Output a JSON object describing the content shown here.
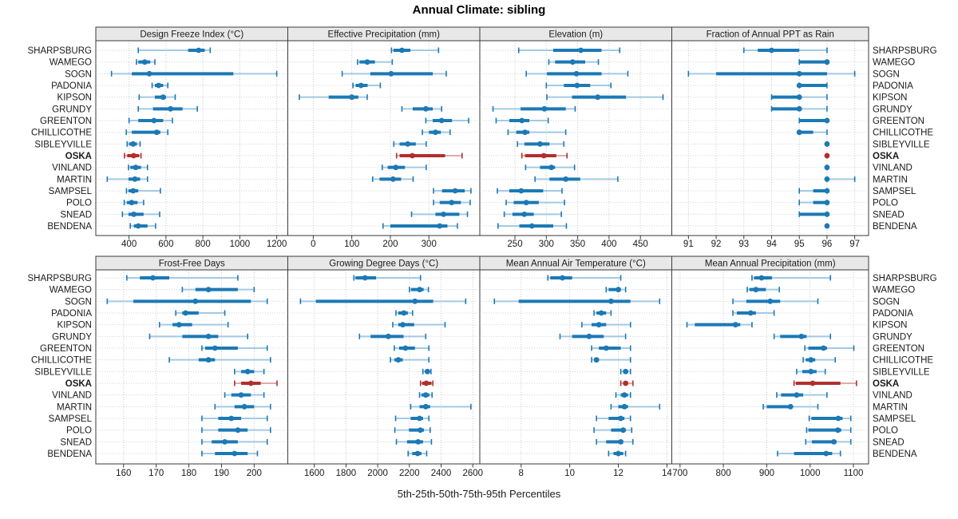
{
  "title": "Annual Climate: sibling",
  "footer": "5th-25th-50th-75th-95th Percentiles",
  "colors": {
    "series": "#1b79b5",
    "series_light": "#a4c9e4",
    "highlight": "#b22e2e",
    "highlight_light": "#ddacac",
    "header_bg": "#e8e8e8",
    "border": "#3a3a3a",
    "grid": "#c8c8c8",
    "text": "#1a1a1a"
  },
  "chart_data": {
    "type": "dotplot-trellis",
    "title": "Annual Climate: sibling",
    "xlabel": "5th-25th-50th-75th-95th Percentiles",
    "legend_note": "each row: thin line 5th-95th percentile with end caps, thick line 25th-75th, dot = median (50th)",
    "grid": "dotted vertical gridlines at ticks, dotted horizontal row guides",
    "highlight_site": "OSKA",
    "sites": [
      "SHARPSBURG",
      "WAMEGO",
      "SOGN",
      "PADONIA",
      "KIPSON",
      "GRUNDY",
      "GREENTON",
      "CHILLICOTHE",
      "SIBLEYVILLE",
      "OSKA",
      "VINLAND",
      "MARTIN",
      "SAMPSEL",
      "POLO",
      "SNEAD",
      "BENDENA"
    ],
    "panels": [
      {
        "title": "Design Freeze Index (°C)",
        "ticks": [
          400,
          600,
          800,
          1000,
          1200
        ],
        "domain": [
          220,
          1260
        ],
        "values": [
          [
            450,
            720,
            777,
            810,
            840
          ],
          [
            440,
            450,
            485,
            515,
            540
          ],
          [
            305,
            415,
            510,
            965,
            1200
          ],
          [
            525,
            540,
            560,
            585,
            610
          ],
          [
            455,
            540,
            585,
            600,
            650
          ],
          [
            450,
            530,
            625,
            690,
            770
          ],
          [
            400,
            450,
            535,
            585,
            635
          ],
          [
            385,
            415,
            550,
            570,
            610
          ],
          [
            390,
            400,
            422,
            443,
            460
          ],
          [
            375,
            390,
            425,
            455,
            465
          ],
          [
            397,
            407,
            436,
            465,
            500
          ],
          [
            282,
            397,
            432,
            460,
            500
          ],
          [
            386,
            397,
            422,
            450,
            570
          ],
          [
            374,
            388,
            414,
            446,
            479
          ],
          [
            364,
            397,
            426,
            479,
            566
          ],
          [
            407,
            426,
            450,
            500,
            544
          ]
        ]
      },
      {
        "title": "Effective Precipitation (mm)",
        "ticks": [
          0,
          100,
          200,
          300
        ],
        "domain": [
          -66,
          432
        ],
        "values": [
          [
            203,
            208,
            230,
            252,
            325
          ],
          [
            115,
            120,
            140,
            160,
            205
          ],
          [
            75,
            148,
            202,
            310,
            345
          ],
          [
            103,
            110,
            124,
            141,
            174
          ],
          [
            -36,
            40,
            100,
            117,
            140
          ],
          [
            230,
            258,
            292,
            310,
            333
          ],
          [
            292,
            310,
            333,
            360,
            403
          ],
          [
            283,
            300,
            317,
            331,
            355
          ],
          [
            209,
            224,
            245,
            266,
            293
          ],
          [
            216,
            224,
            257,
            342,
            386
          ],
          [
            179,
            193,
            214,
            238,
            293
          ],
          [
            154,
            172,
            207,
            228,
            259
          ],
          [
            312,
            334,
            368,
            393,
            409
          ],
          [
            312,
            328,
            359,
            383,
            407
          ],
          [
            255,
            317,
            338,
            379,
            400
          ],
          [
            181,
            200,
            328,
            348,
            374
          ]
        ]
      },
      {
        "title": "Elevation (m)",
        "ticks": [
          250,
          300,
          350,
          400,
          450
        ],
        "domain": [
          194,
          500
        ],
        "values": [
          [
            256,
            311,
            355,
            388,
            417
          ],
          [
            304,
            314,
            342,
            362,
            383
          ],
          [
            268,
            301,
            348,
            388,
            430
          ],
          [
            300,
            328,
            349,
            370,
            403
          ],
          [
            301,
            341,
            382,
            427,
            486
          ],
          [
            215,
            259,
            297,
            331,
            346
          ],
          [
            220,
            241,
            261,
            273,
            303
          ],
          [
            239,
            252,
            266,
            273,
            331
          ],
          [
            254,
            265,
            290,
            305,
            328
          ],
          [
            261,
            266,
            296,
            316,
            333
          ],
          [
            267,
            290,
            308,
            314,
            345
          ],
          [
            282,
            305,
            331,
            354,
            414
          ],
          [
            222,
            241,
            260,
            295,
            325
          ],
          [
            236,
            248,
            268,
            288,
            329
          ],
          [
            233,
            246,
            265,
            280,
            324
          ],
          [
            223,
            257,
            277,
            311,
            332
          ]
        ]
      },
      {
        "title": "Fraction of Annual PPT as Rain",
        "ticks": [
          91,
          92,
          93,
          94,
          95,
          96,
          97
        ],
        "domain": [
          90.4,
          97.5
        ],
        "values": [
          [
            93,
            93.5,
            94,
            95,
            96
          ],
          [
            95,
            95,
            96,
            96,
            96
          ],
          [
            91,
            92,
            95,
            96,
            97
          ],
          [
            95,
            95,
            95,
            96,
            96
          ],
          [
            94,
            94,
            95,
            95,
            96
          ],
          [
            94,
            94,
            95,
            95,
            96
          ],
          [
            95,
            95,
            96,
            96,
            96
          ],
          [
            95,
            95,
            95,
            95.5,
            96
          ],
          [
            96,
            96,
            96,
            96,
            96
          ],
          [
            96,
            96,
            96,
            96,
            96
          ],
          [
            96,
            96,
            96,
            96,
            96
          ],
          [
            96,
            96,
            96,
            96,
            97
          ],
          [
            95,
            95.5,
            96,
            96,
            96
          ],
          [
            95,
            95.5,
            96,
            96,
            96
          ],
          [
            95,
            95,
            96,
            96,
            96
          ],
          [
            96,
            96,
            96,
            96,
            96
          ]
        ]
      },
      {
        "title": "Frost-Free Days",
        "ticks": [
          160,
          170,
          180,
          190,
          200
        ],
        "domain": [
          151.5,
          210.3
        ],
        "values": [
          [
            161,
            165,
            169,
            174,
            195
          ],
          [
            178,
            182,
            186,
            195,
            200
          ],
          [
            155,
            163,
            182,
            199,
            204
          ],
          [
            176,
            178,
            179,
            183,
            191
          ],
          [
            171,
            175,
            177,
            181,
            192
          ],
          [
            168,
            178,
            186,
            189,
            198
          ],
          [
            184,
            185,
            188,
            195,
            204
          ],
          [
            174,
            183,
            186,
            188,
            205
          ],
          [
            194,
            196,
            198,
            200,
            203
          ],
          [
            194,
            196,
            199,
            202,
            207
          ],
          [
            191,
            193,
            196,
            199,
            203
          ],
          [
            188,
            194,
            197,
            200,
            205
          ],
          [
            184,
            189,
            193,
            196,
            204
          ],
          [
            184,
            189,
            195,
            198,
            205
          ],
          [
            184,
            187,
            191,
            195,
            204
          ],
          [
            184,
            188,
            194,
            198,
            201
          ]
        ]
      },
      {
        "title": "Growing Degree Days (°C)",
        "ticks": [
          1600,
          1800,
          2000,
          2200,
          2400,
          2600
        ],
        "domain": [
          1433,
          2644
        ],
        "values": [
          [
            1850,
            1860,
            1920,
            1990,
            2270
          ],
          [
            2200,
            2210,
            2265,
            2290,
            2320
          ],
          [
            1513,
            1610,
            2235,
            2350,
            2555
          ],
          [
            2115,
            2130,
            2165,
            2190,
            2220
          ],
          [
            2095,
            2130,
            2158,
            2230,
            2425
          ],
          [
            1885,
            1955,
            2067,
            2163,
            2303
          ],
          [
            2105,
            2135,
            2175,
            2235,
            2323
          ],
          [
            2080,
            2105,
            2130,
            2158,
            2323
          ],
          [
            2285,
            2297,
            2314,
            2326,
            2336
          ],
          [
            2270,
            2280,
            2306,
            2339,
            2348
          ],
          [
            2264,
            2276,
            2303,
            2326,
            2343
          ],
          [
            2208,
            2264,
            2303,
            2331,
            2588
          ],
          [
            2113,
            2208,
            2264,
            2286,
            2323
          ],
          [
            2108,
            2197,
            2269,
            2292,
            2331
          ],
          [
            2118,
            2185,
            2255,
            2286,
            2339
          ],
          [
            2192,
            2218,
            2252,
            2276,
            2309
          ]
        ]
      },
      {
        "title": "Mean Annual Air Temperature (°C)",
        "ticks": [
          8,
          10,
          12,
          14
        ],
        "domain": [
          6.3,
          14.2
        ],
        "values": [
          [
            9.1,
            9.2,
            9.7,
            10.1,
            12.1
          ],
          [
            11.5,
            11.6,
            12.0,
            12.1,
            12.3
          ],
          [
            6.9,
            7.9,
            11.7,
            12.5,
            13.7
          ],
          [
            11.0,
            11.1,
            11.3,
            11.5,
            11.7
          ],
          [
            10.5,
            10.9,
            11.2,
            11.5,
            12.5
          ],
          [
            9.6,
            10.1,
            10.8,
            11.4,
            12.3
          ],
          [
            10.9,
            11.2,
            11.5,
            12.1,
            12.5
          ],
          [
            10.9,
            11.0,
            11.1,
            11.2,
            12.5
          ],
          [
            12.1,
            12.2,
            12.3,
            12.4,
            12.5
          ],
          [
            12.1,
            12.2,
            12.3,
            12.4,
            12.6
          ],
          [
            11.9,
            12.1,
            12.25,
            12.4,
            12.5
          ],
          [
            11.7,
            12.0,
            12.25,
            12.4,
            13.7
          ],
          [
            11.1,
            11.6,
            12.1,
            12.25,
            12.5
          ],
          [
            11.0,
            11.7,
            12.2,
            12.3,
            12.55
          ],
          [
            11.1,
            11.5,
            12.1,
            12.2,
            12.6
          ],
          [
            11.6,
            11.8,
            12.0,
            12.2,
            12.3
          ]
        ]
      },
      {
        "title": "Mean Annual Precipitation (mm)",
        "ticks": [
          700,
          800,
          900,
          1000,
          1100
        ],
        "domain": [
          681,
          1135
        ],
        "values": [
          [
            866,
            871,
            888,
            912,
            1047
          ],
          [
            855,
            860,
            875,
            898,
            929
          ],
          [
            822,
            853,
            908,
            931,
            1018
          ],
          [
            822,
            831,
            863,
            875,
            917
          ],
          [
            716,
            734,
            828,
            839,
            866
          ],
          [
            917,
            931,
            980,
            992,
            1047
          ],
          [
            988,
            996,
            1031,
            1039,
            1101
          ],
          [
            984,
            990,
            1002,
            1012,
            1058
          ],
          [
            969,
            982,
            1002,
            1015,
            1035
          ],
          [
            963,
            967,
            1006,
            1070,
            1107
          ],
          [
            923,
            933,
            969,
            984,
            1039
          ],
          [
            892,
            900,
            955,
            960,
            1018
          ],
          [
            998,
            1003,
            1065,
            1075,
            1094
          ],
          [
            992,
            996,
            1064,
            1072,
            1094
          ],
          [
            990,
            1004,
            1055,
            1061,
            1094
          ],
          [
            925,
            963,
            1037,
            1051,
            1070
          ]
        ]
      }
    ]
  }
}
